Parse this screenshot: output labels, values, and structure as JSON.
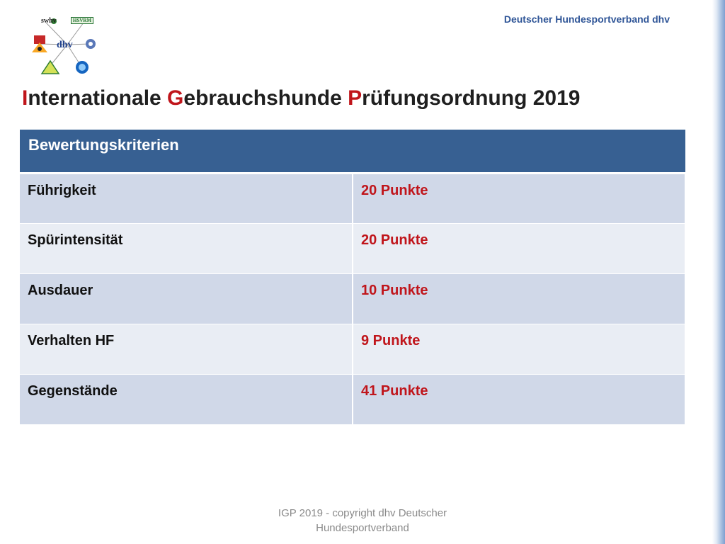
{
  "header": {
    "organization": "Deutscher Hundesportverband dhv"
  },
  "logos": {
    "swhv": "swhv",
    "hsvrm": "HSVRM",
    "dhv": "dhv"
  },
  "title": {
    "part1_initial": "I",
    "part1_rest": "nternationale ",
    "part2_initial": "G",
    "part2_rest": "ebrauchshunde ",
    "part3_initial": "P",
    "part3_rest": "rüfungsordnung 2019"
  },
  "table": {
    "header": "Bewertungskriterien",
    "rows": [
      {
        "criterion": "Führigkeit",
        "points": "20 Punkte"
      },
      {
        "criterion": "Spürintensität",
        "points": "20 Punkte"
      },
      {
        "criterion": "Ausdauer",
        "points": "10 Punkte"
      },
      {
        "criterion": "Verhalten HF",
        "points": "9 Punkte"
      },
      {
        "criterion": "Gegenstände",
        "points": "41 Punkte"
      }
    ]
  },
  "footer": {
    "line1": "IGP 2019 -  copyright dhv Deutscher",
    "line2": "Hundesportverband"
  },
  "colors": {
    "accent": "#c0151b",
    "header_blue": "#376092",
    "row_dark": "#d0d8e8",
    "row_light": "#e9edf4",
    "org_text": "#2f5597"
  }
}
